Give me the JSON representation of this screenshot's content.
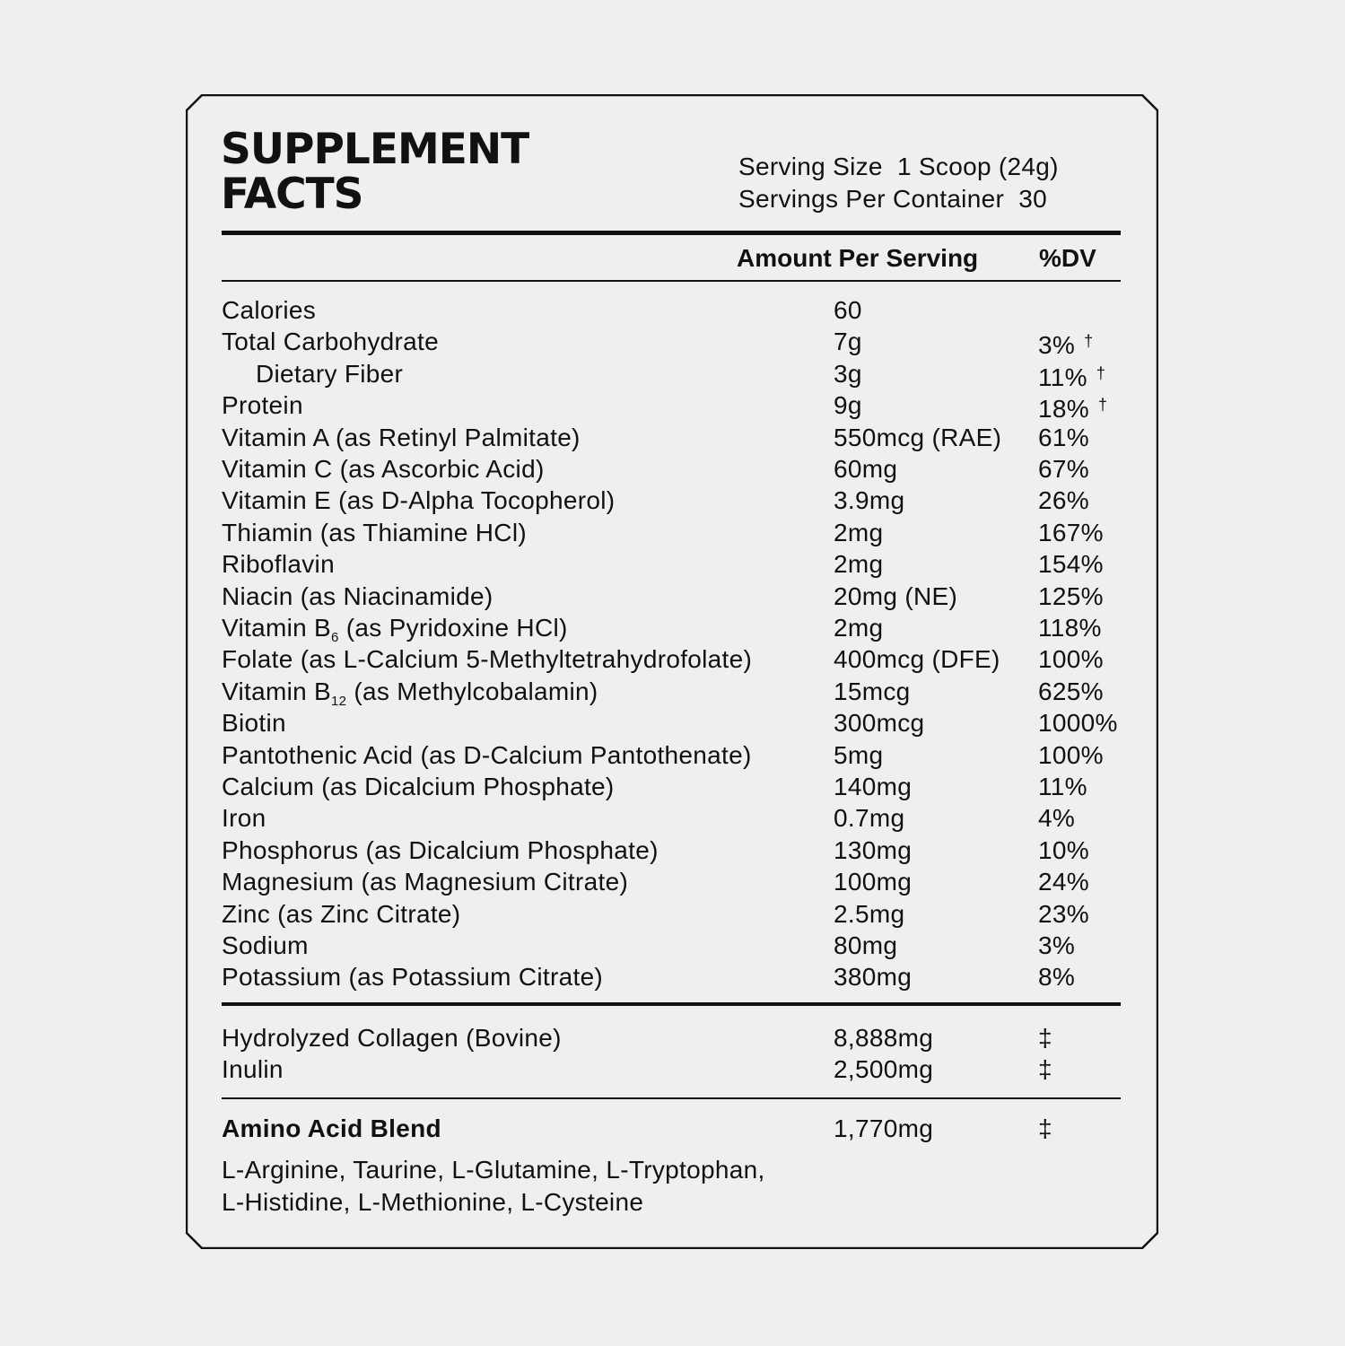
{
  "title_line1": "SUPPLEMENT",
  "title_line2": "FACTS",
  "serving_size_label": "Serving Size",
  "serving_size_value": "1 Scoop (24g)",
  "servings_label": "Servings Per Container",
  "servings_value": "30",
  "header": {
    "amount": "Amount Per Serving",
    "dv": "%DV"
  },
  "nutrients": [
    {
      "name": "Calories",
      "amount": "60",
      "dv": ""
    },
    {
      "name": "Total Carbohydrate",
      "amount": "7g",
      "dv": "3%",
      "mark": "†"
    },
    {
      "name": "Dietary Fiber",
      "amount": "3g",
      "dv": "11%",
      "mark": "†",
      "indent": true
    },
    {
      "name": "Protein",
      "amount": "9g",
      "dv": "18%",
      "mark": "†"
    },
    {
      "name": "Vitamin A (as Retinyl Palmitate)",
      "amount": "550mcg (RAE)",
      "dv": "61%"
    },
    {
      "name": "Vitamin C (as Ascorbic Acid)",
      "amount": "60mg",
      "dv": "67%"
    },
    {
      "name": "Vitamin E (as D-Alpha Tocopherol)",
      "amount": "3.9mg",
      "dv": "26%"
    },
    {
      "name": "Thiamin (as Thiamine HCl)",
      "amount": "2mg",
      "dv": "167%"
    },
    {
      "name": "Riboflavin",
      "amount": "2mg",
      "dv": "154%"
    },
    {
      "name": "Niacin (as Niacinamide)",
      "amount": "20mg (NE)",
      "dv": "125%"
    },
    {
      "name": "Vitamin B",
      "sub": "6",
      "post": " (as Pyridoxine HCl)",
      "amount": "2mg",
      "dv": "118%"
    },
    {
      "name": "Folate (as L-Calcium 5-Methyltetrahydrofolate)",
      "amount": "400mcg (DFE)",
      "dv": "100%"
    },
    {
      "name": "Vitamin B",
      "sub": "12",
      "post": " (as Methylcobalamin)",
      "amount": "15mcg",
      "dv": "625%"
    },
    {
      "name": "Biotin",
      "amount": "300mcg",
      "dv": "1000%"
    },
    {
      "name": "Pantothenic Acid (as D-Calcium Pantothenate)",
      "amount": "5mg",
      "dv": "100%"
    },
    {
      "name": "Calcium (as Dicalcium Phosphate)",
      "amount": "140mg",
      "dv": "11%"
    },
    {
      "name": "Iron",
      "amount": "0.7mg",
      "dv": "4%"
    },
    {
      "name": "Phosphorus (as Dicalcium Phosphate)",
      "amount": "130mg",
      "dv": "10%"
    },
    {
      "name": "Magnesium (as Magnesium Citrate)",
      "amount": "100mg",
      "dv": "24%"
    },
    {
      "name": "Zinc (as Zinc Citrate)",
      "amount": "2.5mg",
      "dv": "23%"
    },
    {
      "name": "Sodium",
      "amount": "80mg",
      "dv": "3%"
    },
    {
      "name": "Potassium (as Potassium Citrate)",
      "amount": "380mg",
      "dv": "8%"
    }
  ],
  "others": [
    {
      "name": "Hydrolyzed Collagen (Bovine)",
      "amount": "8,888mg",
      "dv": "‡"
    },
    {
      "name": "Inulin",
      "amount": "2,500mg",
      "dv": "‡"
    }
  ],
  "blend": {
    "name": "Amino Acid Blend",
    "amount": "1,770mg",
    "dv": "‡",
    "line1": "L-Arginine, Taurine, L-Glutamine, L-Tryptophan,",
    "line2": "L-Histidine, L-Methionine, L-Cysteine"
  }
}
